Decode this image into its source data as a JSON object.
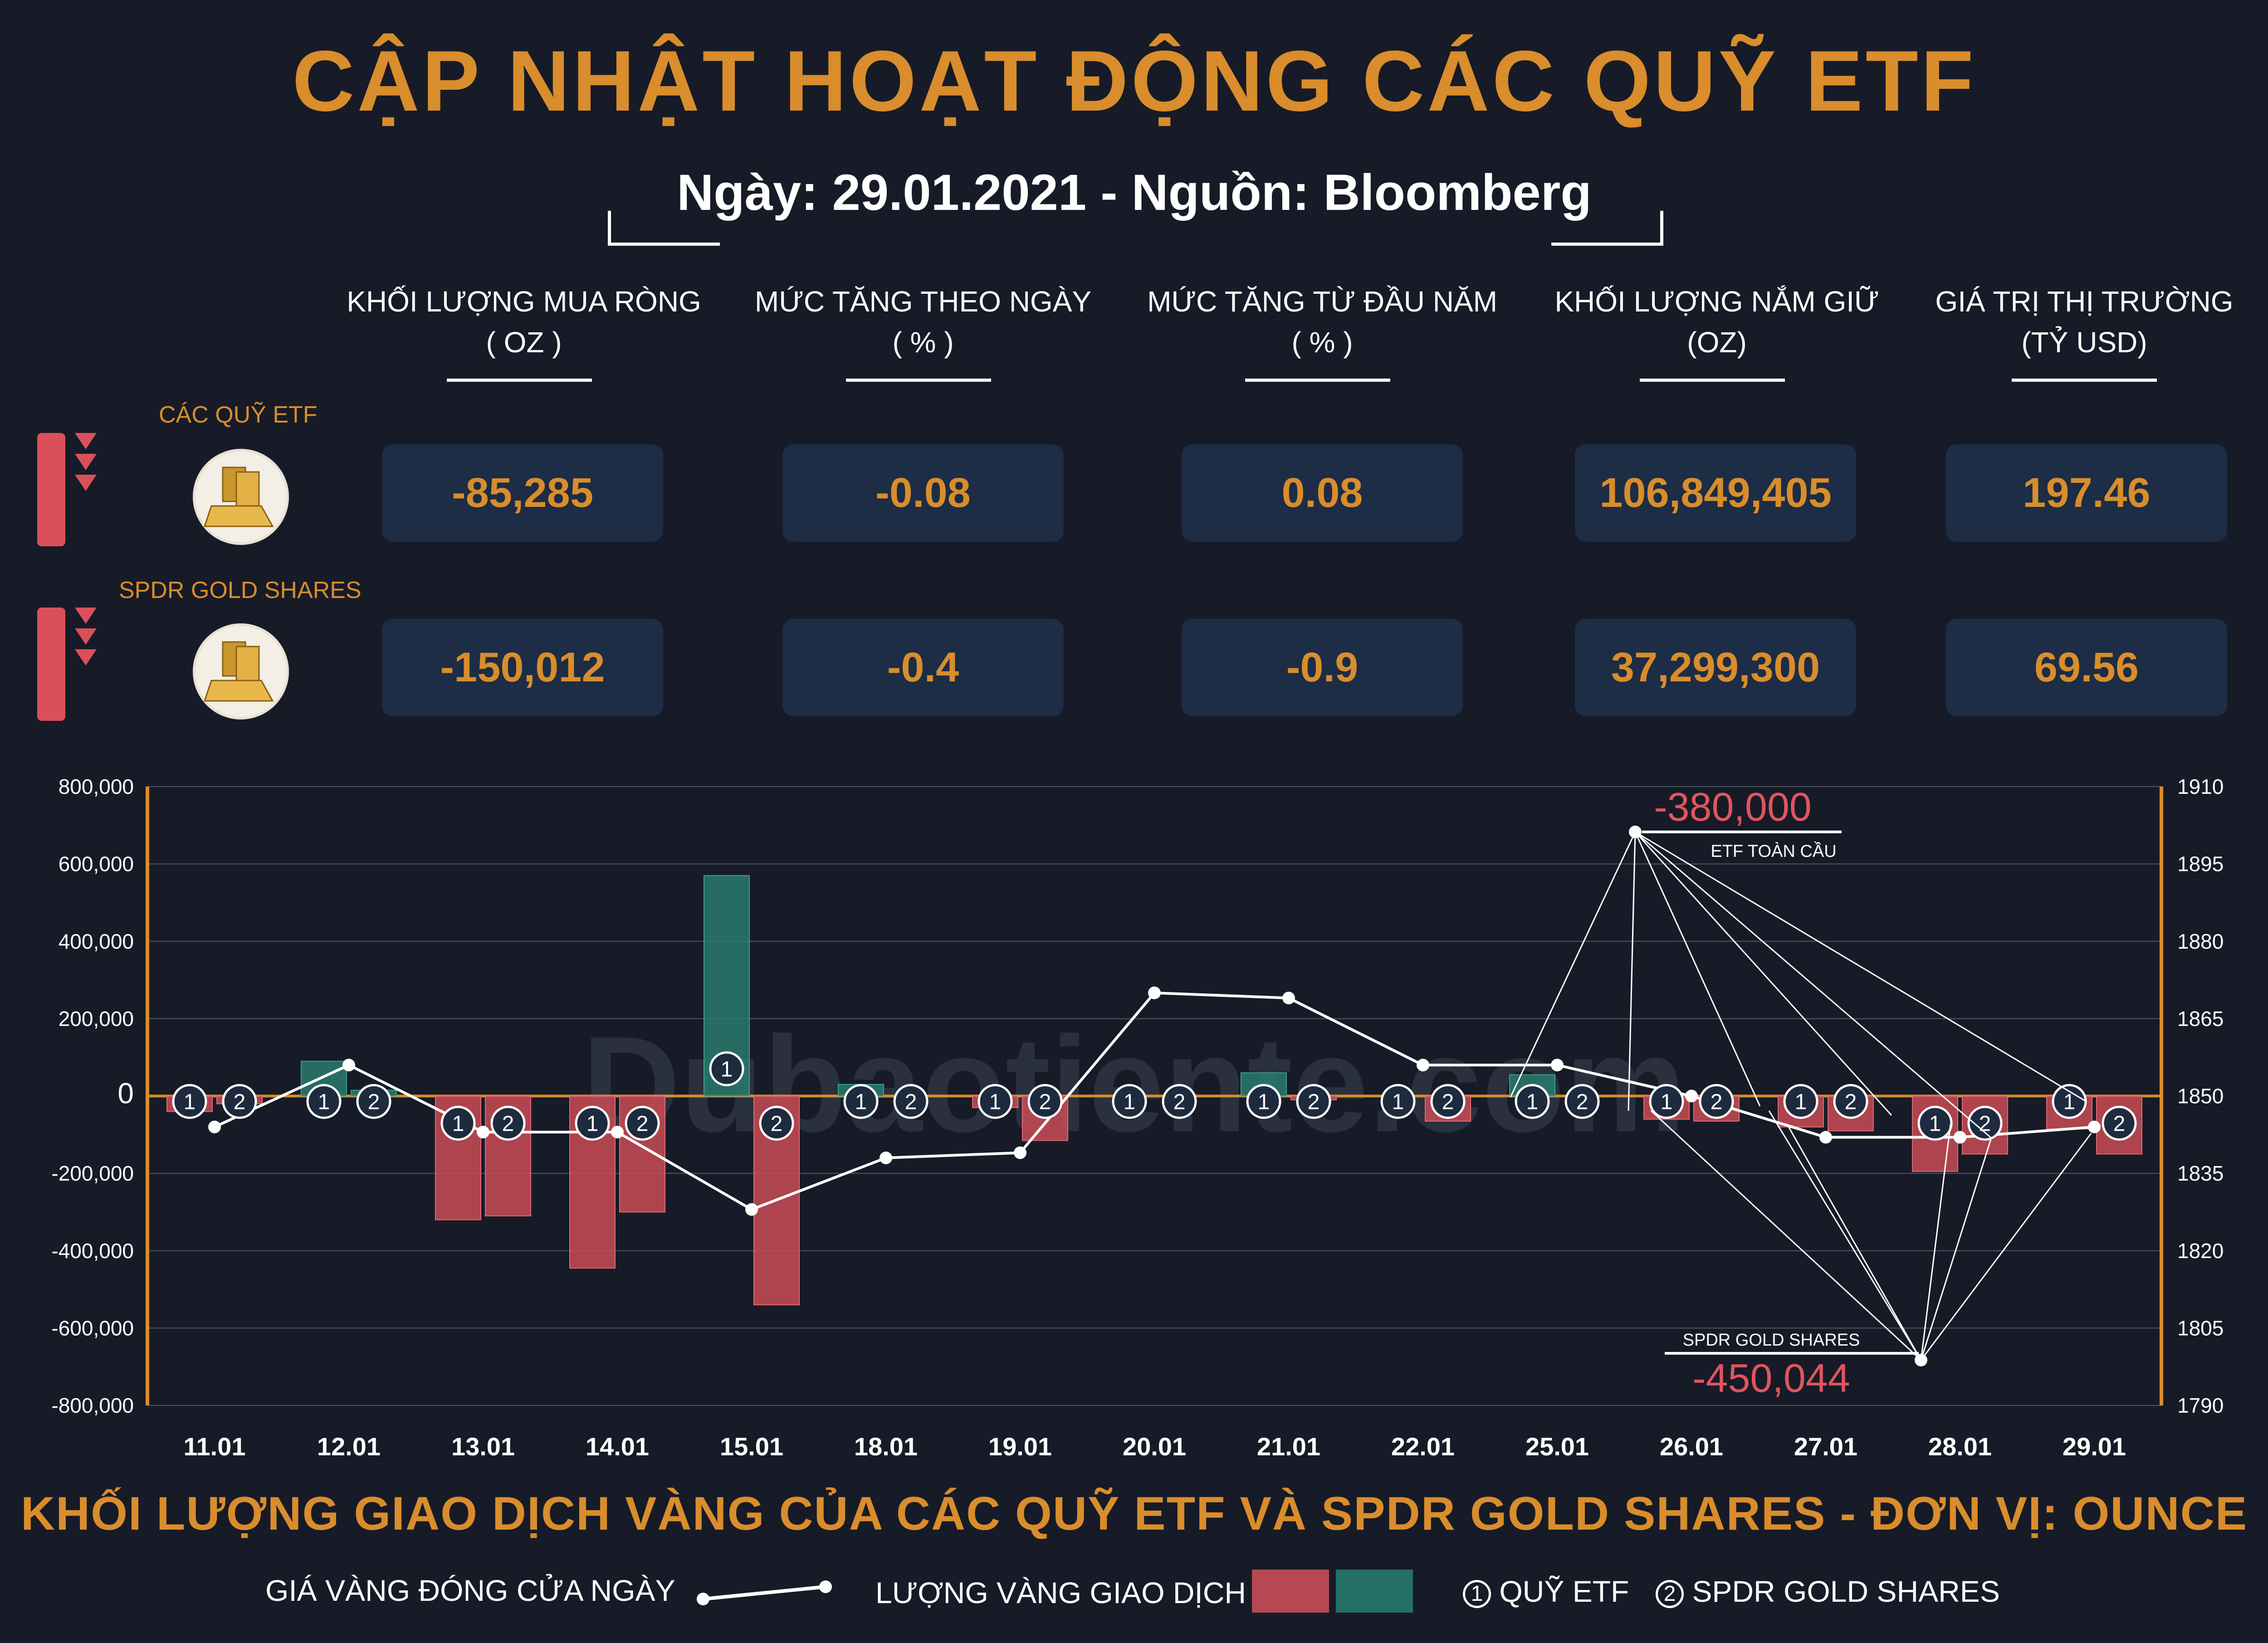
{
  "title": "CẬP NHẬT HOẠT ĐỘNG CÁC QUỸ ETF",
  "subtitle": "Ngày: 29.01.2021 - Nguồn: Bloomberg",
  "columns": [
    {
      "line1": "KHỐI LƯỢNG MUA RÒNG",
      "line2": "( OZ )"
    },
    {
      "line1": "MỨC TĂNG THEO NGÀY",
      "line2": "( % )"
    },
    {
      "line1": "MỨC TĂNG TỪ ĐẦU NĂM",
      "line2": "( % )"
    },
    {
      "line1": "KHỐI LƯỢNG NẮM GIỮ",
      "line2": "(OZ)"
    },
    {
      "line1": "GIÁ TRỊ THỊ TRƯỜNG",
      "line2": "(TỶ USD)"
    }
  ],
  "rows": [
    {
      "label": "CÁC QUỸ ETF",
      "values": [
        "-85,285",
        "-0.08",
        "0.08",
        "106,849,405",
        "197.46"
      ]
    },
    {
      "label": "SPDR GOLD SHARES",
      "values": [
        "-150,012",
        "-0.4",
        "-0.9",
        "37,299,300",
        "69.56"
      ]
    }
  ],
  "watermark": "Dubaotiente.com",
  "chart_data": {
    "type": "bar",
    "categories": [
      "11.01",
      "12.01",
      "13.01",
      "14.01",
      "15.01",
      "18.01",
      "19.01",
      "20.01",
      "21.01",
      "22.01",
      "25.01",
      "26.01",
      "27.01",
      "28.01",
      "29.01"
    ],
    "series": [
      {
        "name": "QUỸ ETF",
        "marker": "1",
        "values": [
          -40000,
          90000,
          -320000,
          -445000,
          570000,
          30000,
          -30000,
          0,
          60000,
          0,
          55000,
          -60000,
          -80000,
          -195000,
          -85285
        ]
      },
      {
        "name": "SPDR GOLD SHARES",
        "marker": "2",
        "values": [
          -20000,
          15000,
          -310000,
          -300000,
          -540000,
          0,
          -115000,
          0,
          -10000,
          -65000,
          0,
          -65000,
          -90000,
          -150000,
          -150012
        ]
      }
    ],
    "line": {
      "name": "GIÁ VÀNG ĐÓNG CỬA NGÀY",
      "values": [
        1844,
        1856,
        1843,
        1843,
        1828,
        1838,
        1839,
        1870,
        1869,
        1856,
        1856,
        1850,
        1842,
        1842,
        1844
      ]
    },
    "ylim_left": [
      -800000,
      800000
    ],
    "ylim_right": [
      1790,
      1910
    ],
    "yticks_left": [
      "800,000",
      "600,000",
      "400,000",
      "200,000",
      "0",
      "-200,000",
      "-400,000",
      "-600,000",
      "-800,000"
    ],
    "yticks_right": [
      "1910",
      "1895",
      "1880",
      "1865",
      "1850",
      "1835",
      "1820",
      "1805",
      "1790"
    ],
    "annotations": [
      {
        "value": "-380,000",
        "label": "ETF TOÀN CẦU"
      },
      {
        "value": "-450,044",
        "label": "SPDR GOLD SHARES"
      }
    ],
    "colors": {
      "negative": "#c94b55",
      "positive": "#2a7a6e",
      "line": "#ffffff",
      "axis": "#d98d2c"
    }
  },
  "footer": "KHỐI LƯỢNG GIAO DỊCH VÀNG CỦA CÁC QUỸ ETF VÀ SPDR GOLD SHARES - ĐƠN VỊ: OUNCE",
  "legend": {
    "price_label": "GIÁ VÀNG ĐÓNG CỬA NGÀY",
    "volume_label": "LƯỢNG VÀNG GIAO DỊCH",
    "etf_marker": "1",
    "etf_label": "QUỸ ETF",
    "spdr_marker": "2",
    "spdr_label": "SPDR GOLD SHARES"
  }
}
